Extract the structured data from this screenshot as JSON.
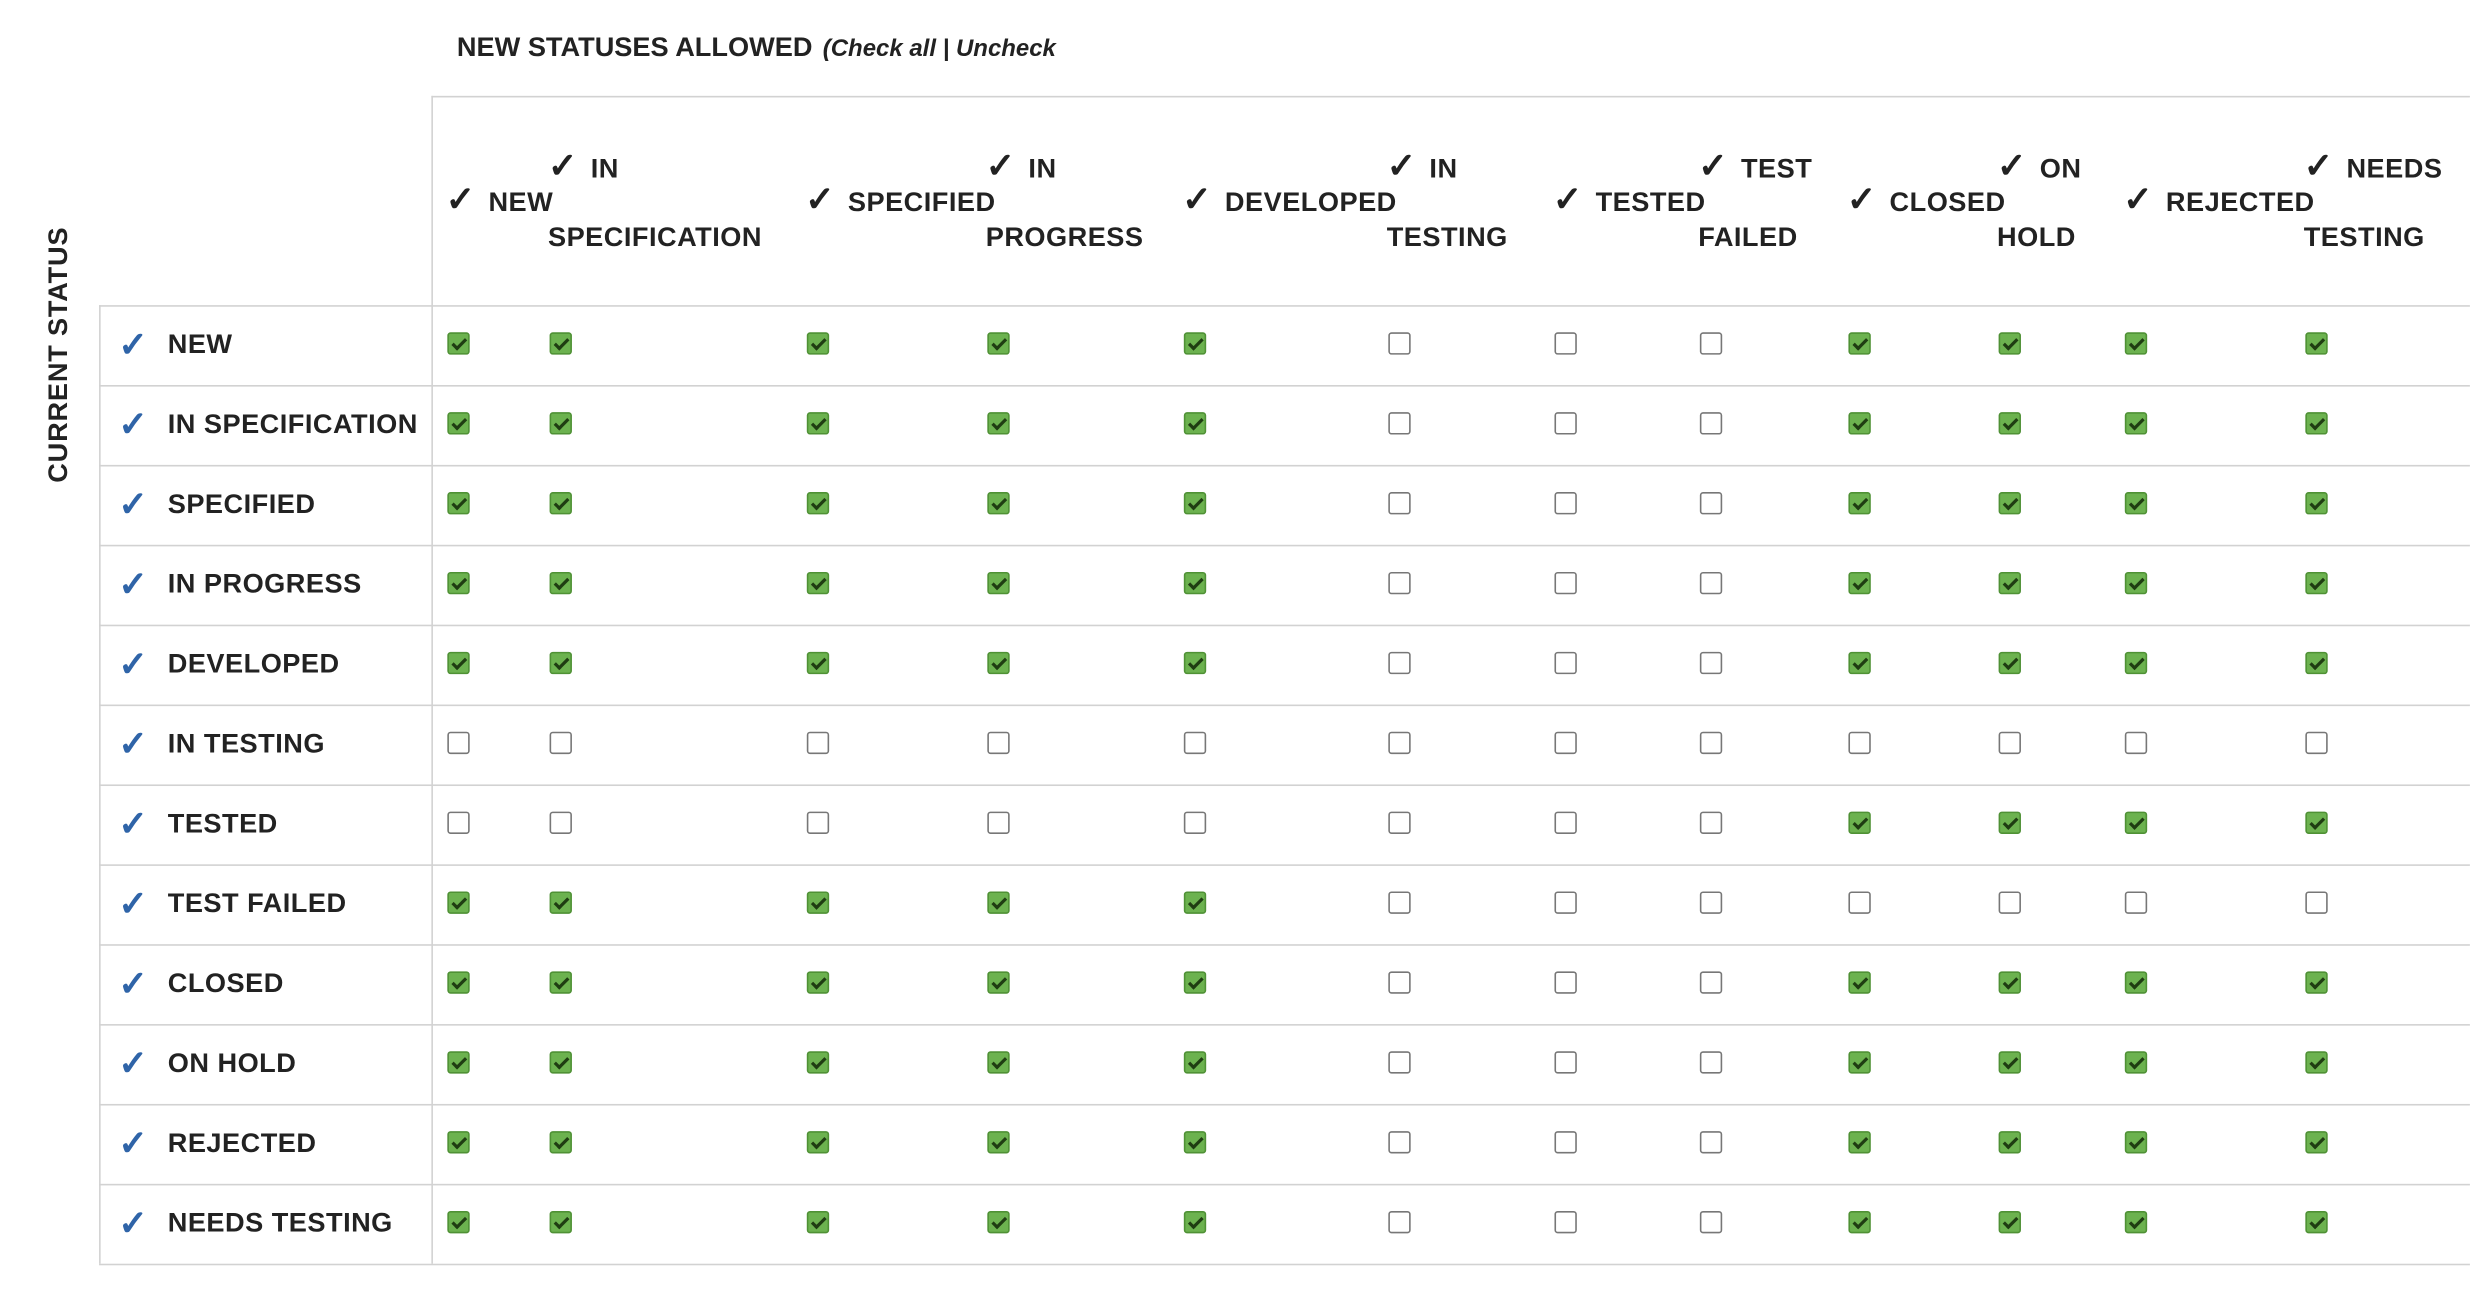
{
  "header": {
    "title": "NEW STATUSES ALLOWED",
    "actions": "(Check all | Uncheck"
  },
  "side_label": "CURRENT STATUS",
  "columns": [
    "NEW",
    "IN SPECIFICATION",
    "SPECIFIED",
    "IN PROGRESS",
    "DEVELOPED",
    "IN TESTING",
    "TESTED",
    "TEST FAILED",
    "CLOSED",
    "ON HOLD",
    "REJECTED",
    "NEEDS TESTING"
  ],
  "rows": [
    {
      "label": "NEW",
      "allowed": [
        true,
        true,
        true,
        true,
        true,
        false,
        false,
        false,
        true,
        true,
        true,
        true
      ]
    },
    {
      "label": "IN SPECIFICATION",
      "allowed": [
        true,
        true,
        true,
        true,
        true,
        false,
        false,
        false,
        true,
        true,
        true,
        true
      ]
    },
    {
      "label": "SPECIFIED",
      "allowed": [
        true,
        true,
        true,
        true,
        true,
        false,
        false,
        false,
        true,
        true,
        true,
        true
      ]
    },
    {
      "label": "IN PROGRESS",
      "allowed": [
        true,
        true,
        true,
        true,
        true,
        false,
        false,
        false,
        true,
        true,
        true,
        true
      ]
    },
    {
      "label": "DEVELOPED",
      "allowed": [
        true,
        true,
        true,
        true,
        true,
        false,
        false,
        false,
        true,
        true,
        true,
        true
      ]
    },
    {
      "label": "IN TESTING",
      "allowed": [
        false,
        false,
        false,
        false,
        false,
        false,
        false,
        false,
        false,
        false,
        false,
        false
      ]
    },
    {
      "label": "TESTED",
      "allowed": [
        false,
        false,
        false,
        false,
        false,
        false,
        false,
        false,
        true,
        true,
        true,
        true
      ]
    },
    {
      "label": "TEST FAILED",
      "allowed": [
        true,
        true,
        true,
        true,
        true,
        false,
        false,
        false,
        false,
        false,
        false,
        false
      ]
    },
    {
      "label": "CLOSED",
      "allowed": [
        true,
        true,
        true,
        true,
        true,
        false,
        false,
        false,
        true,
        true,
        true,
        true
      ]
    },
    {
      "label": "ON HOLD",
      "allowed": [
        true,
        true,
        true,
        true,
        true,
        false,
        false,
        false,
        true,
        true,
        true,
        true
      ]
    },
    {
      "label": "REJECTED",
      "allowed": [
        true,
        true,
        true,
        true,
        true,
        false,
        false,
        false,
        true,
        true,
        true,
        true
      ]
    },
    {
      "label": "NEEDS TESTING",
      "allowed": [
        true,
        true,
        true,
        true,
        true,
        false,
        false,
        false,
        true,
        true,
        true,
        true
      ]
    }
  ]
}
